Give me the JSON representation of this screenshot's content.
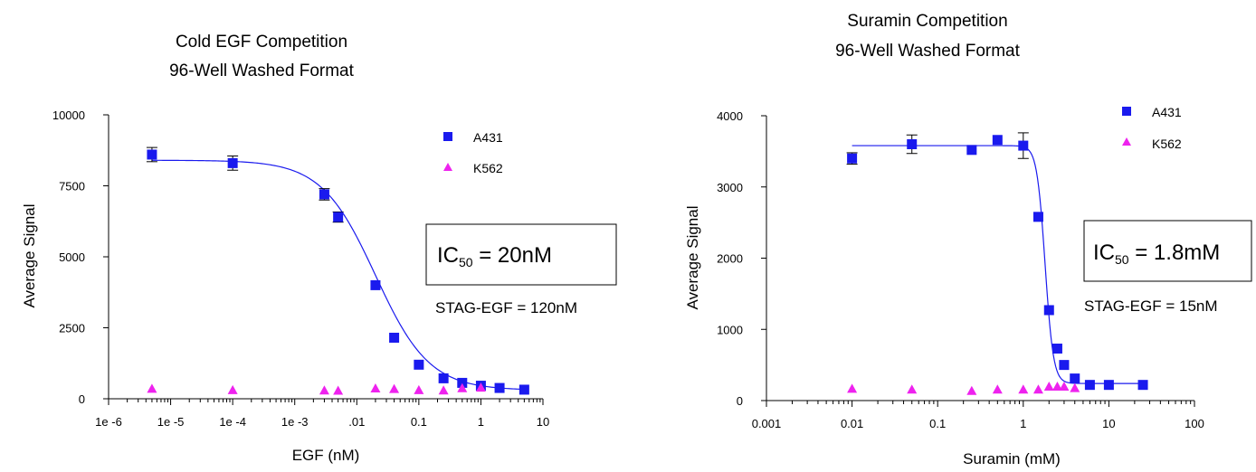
{
  "chart_data": [
    {
      "type": "scatter",
      "title": "Cold EGF Competition",
      "subtitle": "96-Well Washed Format",
      "xlabel": "EGF (nM)",
      "ylabel": "Average Signal",
      "xscale": "log",
      "xlim": [
        1e-06,
        10
      ],
      "ylim": [
        0,
        10000
      ],
      "xtick_values": [
        1e-06,
        1e-05,
        0.0001,
        0.001,
        0.01,
        0.1,
        1,
        10
      ],
      "xtick_labels": [
        "1e -6",
        "1e -5",
        "1e -4",
        "1e -3",
        ".01",
        "0.1",
        "1",
        "10"
      ],
      "ytick_values": [
        0,
        2500,
        5000,
        7500,
        10000
      ],
      "ytick_labels": [
        "0",
        "2500",
        "5000",
        "7500",
        "10000"
      ],
      "legend_position": "top-right",
      "annotation_ic50": {
        "prefix": "IC",
        "sub": "50",
        "rest": " =  20nM"
      },
      "annotation_stag": "STAG-EGF  =  120nM",
      "fit": {
        "top": 8400,
        "bottom": 300,
        "ic50": 0.02,
        "hill": 1
      },
      "series": [
        {
          "name": "A431",
          "color": "#1a1aee",
          "marker": "square",
          "fit_line": true,
          "x": [
            5e-06,
            0.0001,
            0.003,
            0.005,
            0.02,
            0.04,
            0.1,
            0.25,
            0.5,
            1,
            2,
            5
          ],
          "y": [
            8600,
            8300,
            7200,
            6400,
            4000,
            2150,
            1200,
            720,
            560,
            460,
            380,
            320
          ],
          "err": [
            250,
            250,
            200,
            180,
            0,
            0,
            0,
            0,
            0,
            0,
            0,
            0
          ]
        },
        {
          "name": "K562",
          "color": "#ee22ee",
          "marker": "triangle",
          "fit_line": false,
          "x": [
            5e-06,
            0.0001,
            0.003,
            0.005,
            0.02,
            0.04,
            0.1,
            0.25,
            0.5,
            1
          ],
          "y": [
            340,
            290,
            280,
            270,
            350,
            330,
            290,
            280,
            360,
            380
          ]
        }
      ]
    },
    {
      "type": "scatter",
      "title": "Suramin Competition",
      "subtitle": "96-Well Washed Format",
      "xlabel": "Suramin (mM)",
      "ylabel": "Average Signal",
      "xscale": "log",
      "xlim": [
        0.001,
        100
      ],
      "ylim": [
        0,
        4000
      ],
      "xtick_values": [
        0.001,
        0.01,
        0.1,
        1,
        10,
        100
      ],
      "xtick_labels": [
        "0.001",
        "0.01",
        "0.1",
        "1",
        "10",
        "100"
      ],
      "ytick_values": [
        0,
        1000,
        2000,
        3000,
        4000
      ],
      "ytick_labels": [
        "0",
        "1000",
        "2000",
        "3000",
        "4000"
      ],
      "legend_position": "top-right",
      "annotation_ic50": {
        "prefix": "IC",
        "sub": "50",
        "rest": " =  1.8mM"
      },
      "annotation_stag": "STAG-EGF  =  15nM",
      "fit": {
        "top": 3580,
        "bottom": 240,
        "ic50": 1.8,
        "hill": 9
      },
      "series": [
        {
          "name": "A431",
          "color": "#1a1aee",
          "marker": "square",
          "fit_line": true,
          "x": [
            0.01,
            0.05,
            0.25,
            0.5,
            1,
            1.5,
            2,
            2.5,
            3,
            4,
            6,
            10,
            25
          ],
          "y": [
            3400,
            3600,
            3520,
            3660,
            3580,
            2580,
            1270,
            730,
            500,
            310,
            220,
            220,
            220
          ],
          "err": [
            80,
            130,
            0,
            0,
            180,
            0,
            0,
            0,
            0,
            0,
            0,
            0,
            0
          ]
        },
        {
          "name": "K562",
          "color": "#ee22ee",
          "marker": "triangle",
          "fit_line": false,
          "x": [
            0.01,
            0.05,
            0.25,
            0.5,
            1,
            1.5,
            2,
            2.5,
            3,
            4
          ],
          "y": [
            160,
            150,
            130,
            150,
            150,
            150,
            190,
            190,
            190,
            170
          ]
        }
      ]
    }
  ]
}
